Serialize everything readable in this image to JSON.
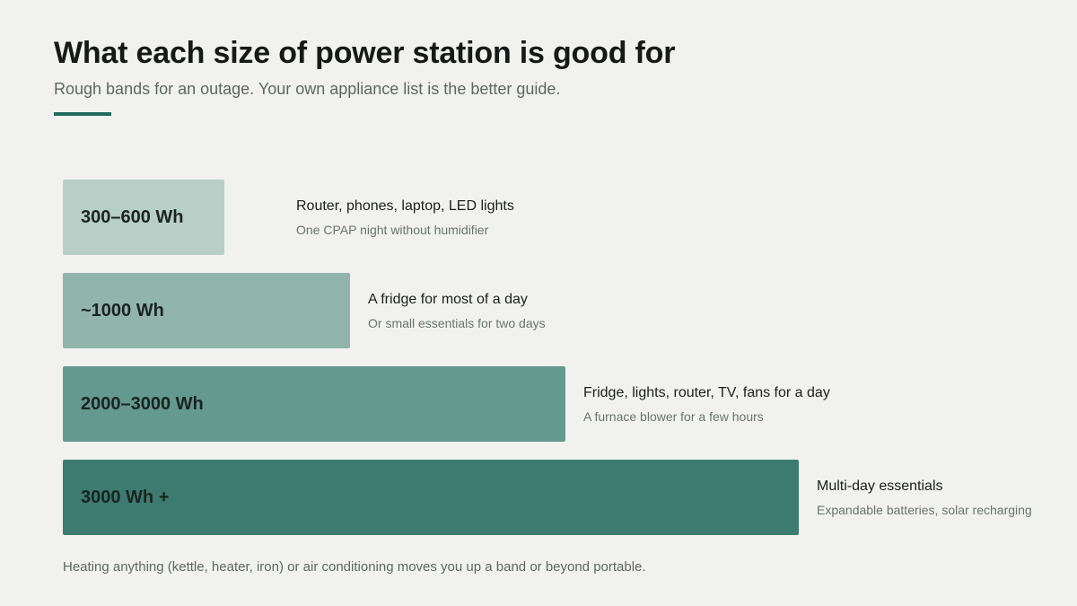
{
  "title": "What each size of power station is good for",
  "subtitle": "Rough bands for an outage. Your own appliance list is the better guide.",
  "footnote": "Heating anything (kettle, heater, iron) or air conditioning moves you up a band or beyond portable.",
  "colors": {
    "background": "#f1f2ef",
    "accent": "#1f6a5c",
    "bands": [
      "#b8cfc8",
      "#91b5ab",
      "#64998f",
      "#3d7b71"
    ]
  },
  "chart_data": {
    "type": "bar",
    "orientation": "horizontal",
    "title": "What each size of power station is good for",
    "subtitle": "Rough bands for an outage. Your own appliance list is the better guide.",
    "categories": [
      "300–600 Wh",
      "~1000 Wh",
      "2000–3000 Wh",
      "3000 Wh +"
    ],
    "values": [
      600,
      1000,
      3000,
      4000
    ],
    "descriptions": [
      {
        "main": "Router, phones, laptop, LED lights",
        "sub": "One CPAP night without humidifier"
      },
      {
        "main": "A fridge for most of a day",
        "sub": "Or small essentials for two days"
      },
      {
        "main": "Fridge, lights, router, TV, fans for a day",
        "sub": "A furnace blower for a few hours"
      },
      {
        "main": "Multi-day essentials",
        "sub": "Expandable batteries, solar recharging"
      }
    ],
    "grid": false,
    "legend": "none"
  }
}
